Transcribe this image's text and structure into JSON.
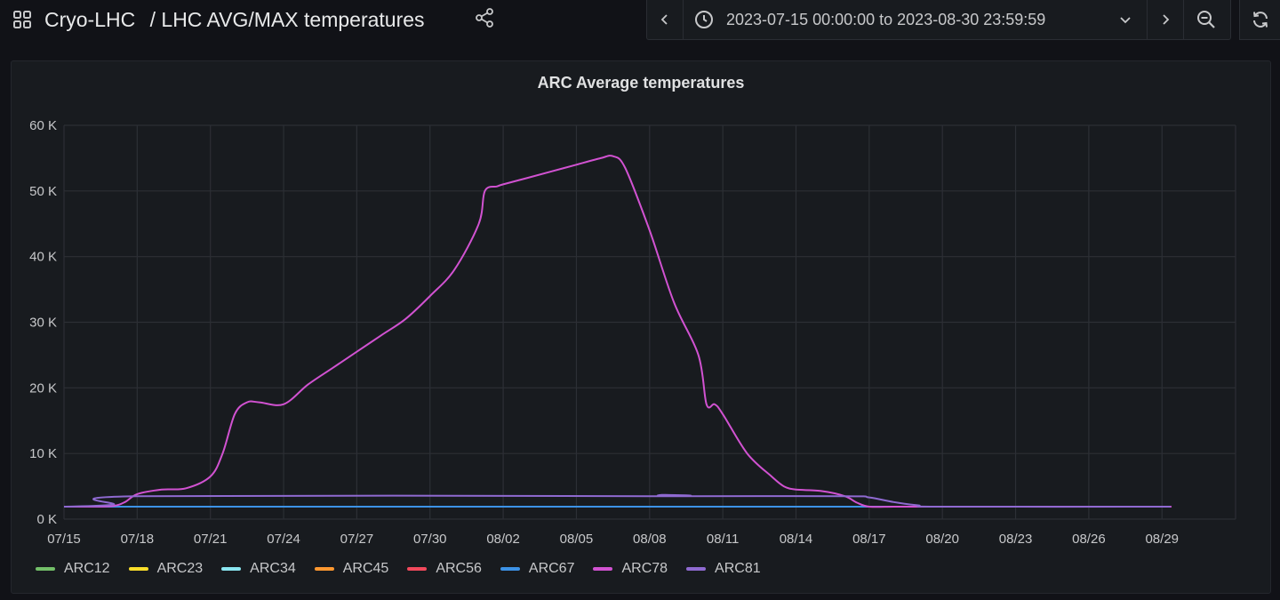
{
  "header": {
    "folder": "Cryo-LHC",
    "separator": "/",
    "dashboard_title": "LHC AVG/MAX temperatures",
    "time_range": "2023-07-15 00:00:00 to 2023-08-30 23:59:59"
  },
  "icons": {
    "dashboards": "grid-icon",
    "share": "share-icon",
    "prev": "chevron-left-icon",
    "clock": "clock-icon",
    "dropdown": "chevron-down-icon",
    "next": "chevron-right-icon",
    "zoom_out": "zoom-out-icon",
    "refresh": "refresh-icon"
  },
  "colors": {
    "background": "#111217",
    "panel": "#181b1f",
    "grid": "#2c2f35"
  },
  "panel": {
    "title": "ARC Average temperatures"
  },
  "chart_data": {
    "type": "line",
    "title": "ARC Average temperatures",
    "xlabel": "",
    "ylabel": "",
    "x_tick_labels": [
      "07/15",
      "07/18",
      "07/21",
      "07/24",
      "07/27",
      "07/30",
      "08/02",
      "08/05",
      "08/08",
      "08/11",
      "08/14",
      "08/17",
      "08/20",
      "08/23",
      "08/26",
      "08/29"
    ],
    "y_tick_labels": [
      "0 K",
      "10 K",
      "20 K",
      "30 K",
      "40 K",
      "50 K",
      "60 K"
    ],
    "xlim": [
      "2023-07-15",
      "2023-08-30"
    ],
    "ylim": [
      0,
      60000
    ],
    "grid": true,
    "legend_position": "bottom-left",
    "series": [
      {
        "name": "ARC12",
        "color": "#73bf69",
        "x": [
          "2023-07-15",
          "2023-08-30"
        ],
        "y": [
          1900,
          1900
        ]
      },
      {
        "name": "ARC23",
        "color": "#fade2a",
        "x": [
          "2023-07-15",
          "2023-08-30"
        ],
        "y": [
          1900,
          1900
        ]
      },
      {
        "name": "ARC34",
        "color": "#8ae6f0",
        "x": [
          "2023-07-15",
          "2023-08-30"
        ],
        "y": [
          1900,
          1900
        ]
      },
      {
        "name": "ARC45",
        "color": "#ff9830",
        "x": [
          "2023-07-15",
          "2023-08-30"
        ],
        "y": [
          1900,
          1900
        ]
      },
      {
        "name": "ARC56",
        "color": "#f2495c",
        "x": [
          "2023-07-15",
          "2023-08-30"
        ],
        "y": [
          1900,
          1900
        ]
      },
      {
        "name": "ARC67",
        "color": "#3c92e6",
        "x": [
          "2023-07-15",
          "2023-08-30"
        ],
        "y": [
          1900,
          1900
        ]
      },
      {
        "name": "ARC78",
        "color": "#d152d1",
        "x": [
          "2023-07-15",
          "2023-07-16",
          "2023-07-17",
          "2023-07-17 12:00",
          "2023-07-18",
          "2023-07-19",
          "2023-07-20",
          "2023-07-21",
          "2023-07-21 12:00",
          "2023-07-22",
          "2023-07-22 12:00",
          "2023-07-23",
          "2023-07-24",
          "2023-07-25",
          "2023-07-26",
          "2023-07-27",
          "2023-07-28",
          "2023-07-29",
          "2023-07-30",
          "2023-07-31",
          "2023-08-01",
          "2023-08-01 06:00",
          "2023-08-01 18:00",
          "2023-08-02",
          "2023-08-03",
          "2023-08-04",
          "2023-08-05",
          "2023-08-06",
          "2023-08-06 12:00",
          "2023-08-07",
          "2023-08-08",
          "2023-08-09",
          "2023-08-10",
          "2023-08-10 08:00",
          "2023-08-10 16:00",
          "2023-08-11",
          "2023-08-12",
          "2023-08-13",
          "2023-08-13 12:00",
          "2023-08-14",
          "2023-08-15",
          "2023-08-16",
          "2023-08-16 12:00",
          "2023-08-17",
          "2023-08-18",
          "2023-08-19",
          "2023-08-20",
          "2023-08-23",
          "2023-08-26",
          "2023-08-29",
          "2023-08-30"
        ],
        "y": [
          1900,
          1900,
          2000,
          2600,
          3800,
          4500,
          4700,
          6500,
          10000,
          16000,
          17800,
          17800,
          17500,
          20500,
          23000,
          25500,
          28000,
          30500,
          34000,
          38000,
          45000,
          50000,
          50700,
          51000,
          52000,
          53000,
          54000,
          55000,
          55300,
          53500,
          44000,
          33000,
          25000,
          17500,
          17500,
          16000,
          10000,
          6500,
          5000,
          4500,
          4300,
          3500,
          2500,
          1900,
          1900,
          1900,
          1900,
          1900,
          1900,
          1900,
          1900
        ]
      },
      {
        "name": "ARC81",
        "color": "#8f6ad1",
        "x": [
          "2023-07-15",
          "2023-07-17",
          "2023-07-18",
          "2023-08-08",
          "2023-08-08 12:00",
          "2023-08-09",
          "2023-08-16",
          "2023-08-17",
          "2023-08-18",
          "2023-08-19",
          "2023-08-20",
          "2023-08-30"
        ],
        "y": [
          1900,
          2200,
          3500,
          3500,
          3700,
          3500,
          3500,
          3300,
          2600,
          2100,
          1900,
          1900
        ]
      }
    ]
  }
}
